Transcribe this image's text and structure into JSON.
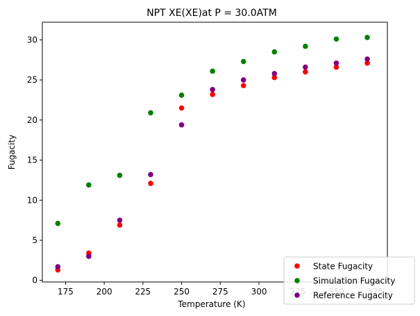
{
  "chart_data": {
    "type": "scatter",
    "title": "NPT XE(XE)at P = 30.0ATM",
    "xlabel": "Temperature (K)",
    "ylabel": "Fugacity",
    "xlim": [
      160,
      383
    ],
    "ylim": [
      -0.2,
      32.2
    ],
    "xticks": [
      175,
      200,
      225,
      250,
      275,
      300,
      325,
      350,
      375
    ],
    "yticks": [
      0,
      5,
      10,
      15,
      20,
      25,
      30
    ],
    "grid": false,
    "legend_position": "lower-right",
    "series": [
      {
        "name": "State Fugacity",
        "color": "#ff0000",
        "x": [
          170,
          190,
          210,
          230,
          250,
          270,
          290,
          310,
          330,
          350,
          370
        ],
        "y": [
          1.3,
          3.4,
          6.9,
          12.1,
          21.5,
          23.2,
          24.3,
          25.3,
          26.0,
          26.6,
          27.1
        ]
      },
      {
        "name": "Simulation Fugacity",
        "color": "#008000",
        "x": [
          170,
          190,
          210,
          230,
          250,
          270,
          290,
          310,
          330,
          350,
          370
        ],
        "y": [
          7.1,
          11.9,
          13.1,
          20.9,
          23.1,
          26.1,
          27.3,
          28.5,
          29.2,
          30.1,
          30.3
        ]
      },
      {
        "name": "Reference Fugacity",
        "color": "#800080",
        "x": [
          170,
          190,
          210,
          230,
          250,
          270,
          290,
          310,
          330,
          350,
          370
        ],
        "y": [
          1.7,
          3.0,
          7.5,
          13.2,
          19.4,
          23.8,
          25.0,
          25.8,
          26.6,
          27.1,
          27.6
        ]
      }
    ]
  }
}
